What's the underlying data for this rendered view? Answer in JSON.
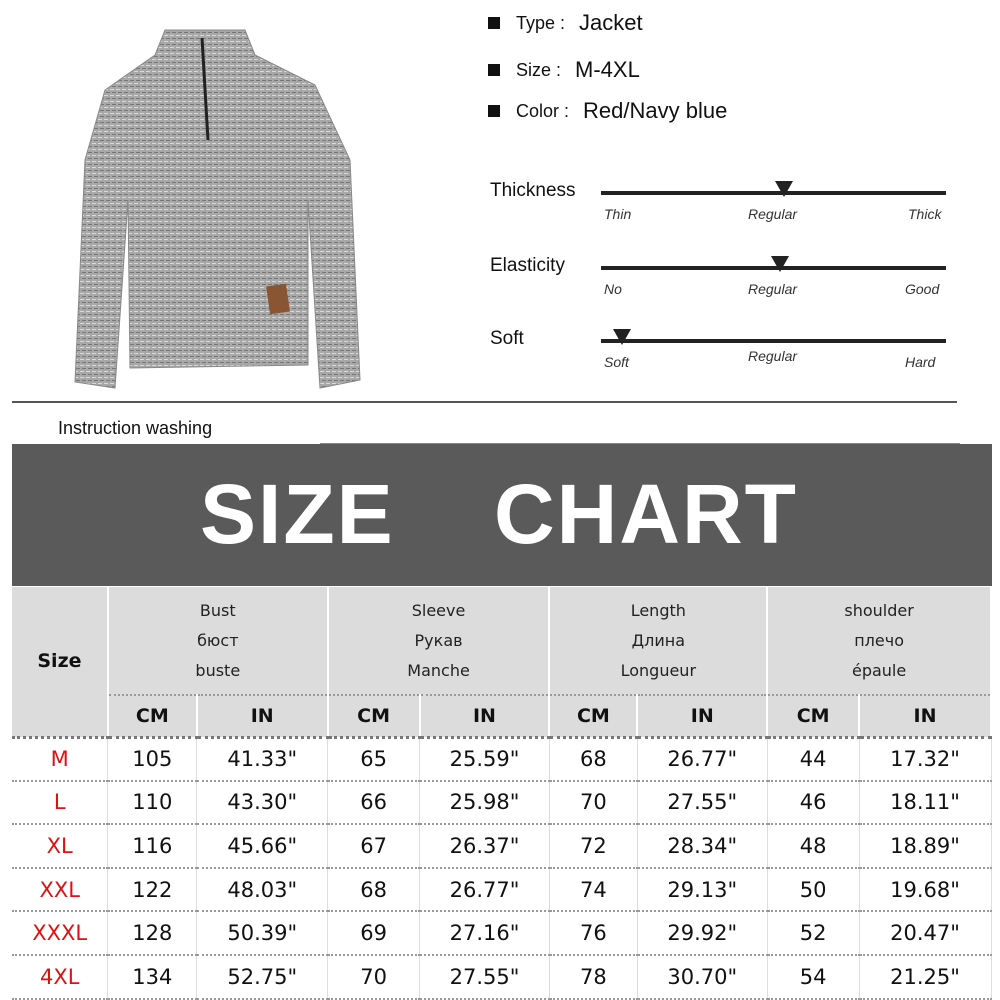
{
  "specs": [
    {
      "key": "Type :",
      "value": "Jacket"
    },
    {
      "key": "Size :",
      "value": "M-4XL"
    },
    {
      "key": "Color :",
      "value": "Red/Navy blue"
    }
  ],
  "scales": [
    {
      "label": "Thickness",
      "ticks": [
        "Thin",
        "Regular",
        "Thick"
      ],
      "level_percent": 53
    },
    {
      "label": "Elasticity",
      "ticks": [
        "No",
        "Regular",
        "Good"
      ],
      "level_percent": 52
    },
    {
      "label": "Soft",
      "ticks": [
        "Soft",
        "Regular",
        "Hard"
      ],
      "level_percent": 6
    }
  ],
  "washing": {
    "label": "Instruction washing",
    "icons": [
      "wash-30-icon",
      "no-bleach-icon",
      "no-tumble-dry-icon",
      "dry-flat-icon",
      "no-iron-icon",
      "no-wring-icon",
      "hand-wash-icon"
    ]
  },
  "banner": {
    "word1": "SIZE",
    "word2": "CHART"
  },
  "table": {
    "size_header": "Size",
    "groups": [
      {
        "en": "Bust",
        "ru": "бюст",
        "fr": "buste"
      },
      {
        "en": "Sleeve",
        "ru": "Рукав",
        "fr": "Manche"
      },
      {
        "en": "Length",
        "ru": "Длина",
        "fr": "Longueur"
      },
      {
        "en": "shoulder",
        "ru": "плечо",
        "fr": "épaule"
      }
    ],
    "units": [
      "CM",
      "IN"
    ],
    "rows": [
      [
        "M",
        "105",
        "41.33\"",
        "65",
        "25.59\"",
        "68",
        "26.77\"",
        "44",
        "17.32\""
      ],
      [
        "L",
        "110",
        "43.30\"",
        "66",
        "25.98\"",
        "70",
        "27.55\"",
        "46",
        "18.11\""
      ],
      [
        "XL",
        "116",
        "45.66\"",
        "67",
        "26.37\"",
        "72",
        "28.34\"",
        "48",
        "18.89\""
      ],
      [
        "XXL",
        "122",
        "48.03\"",
        "68",
        "26.77\"",
        "74",
        "29.13\"",
        "50",
        "19.68\""
      ],
      [
        "XXXL",
        "128",
        "50.39\"",
        "69",
        "27.16\"",
        "76",
        "29.92\"",
        "52",
        "20.47\""
      ],
      [
        "4XL",
        "134",
        "52.75\"",
        "70",
        "27.55\"",
        "78",
        "30.70\"",
        "54",
        "21.25\""
      ]
    ]
  },
  "colors": {
    "banner": "#5a5a5a",
    "size_label": "#e01010",
    "header_bg": "#dcdcdc"
  }
}
